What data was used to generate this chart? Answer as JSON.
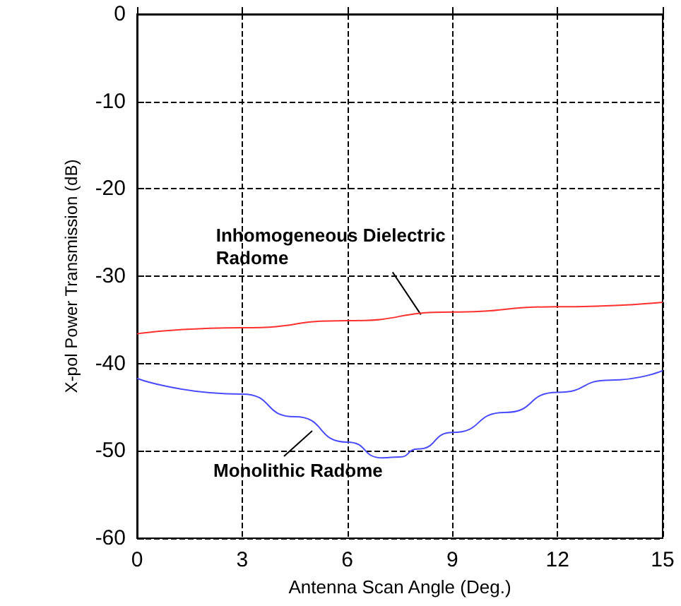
{
  "chart_data": {
    "type": "line",
    "xlabel": "Antenna Scan Angle (Deg.)",
    "ylabel": "X-pol Power Transmission (dB)",
    "xlim": [
      0,
      15
    ],
    "xticks": [
      0,
      3,
      6,
      9,
      12,
      15
    ],
    "ylim": [
      -60,
      0
    ],
    "yticks": [
      -60,
      -50,
      -40,
      -30,
      -20,
      -10,
      0
    ],
    "grid": true,
    "marker": "none",
    "line_style": "solid",
    "series": [
      {
        "color": "#ff3030",
        "x": [
          0,
          3,
          6,
          9,
          12,
          15
        ],
        "values": [
          -36.6,
          -35.9,
          -35.1,
          -34.1,
          -33.5,
          -33.0
        ]
      },
      {
        "color": "#4a4aff",
        "x": [
          0,
          3,
          4.5,
          6,
          7,
          7.5,
          8,
          9,
          10.5,
          12,
          13.5,
          15
        ],
        "values": [
          -41.7,
          -43.5,
          -46.1,
          -49.0,
          -50.8,
          -50.7,
          -49.8,
          -47.9,
          -45.6,
          -43.3,
          -41.9,
          -40.8
        ]
      }
    ],
    "annotations": [
      {
        "text": "Inhomogeneous Dielectric\nRadome",
        "x": 8.1,
        "y": -34.4
      },
      {
        "text": "Monolithic Radome",
        "x": 5.0,
        "y": -47.7
      }
    ]
  }
}
